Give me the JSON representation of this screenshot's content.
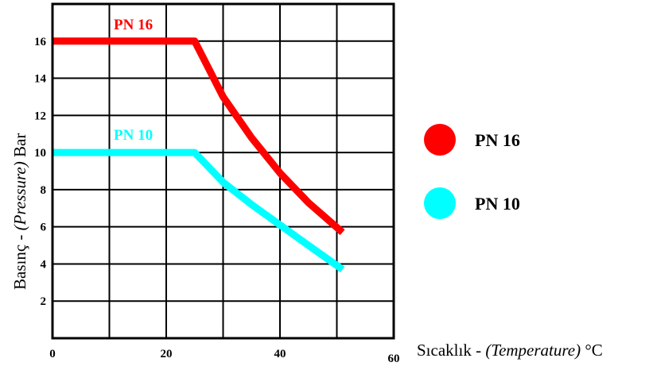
{
  "chart_data": {
    "type": "line",
    "xlabel_plain": "Sıcaklık - ",
    "xlabel_italic": "(Temperature)",
    "xlabel_unit": " °C",
    "ylabel_plain": "Basınç - ",
    "ylabel_italic": "(Pressure)",
    "ylabel_unit": " Bar",
    "xlim": [
      0,
      60
    ],
    "ylim": [
      0,
      18
    ],
    "x_ticks": [
      "0",
      "20",
      "40",
      "60"
    ],
    "y_ticks": [
      "2",
      "4",
      "6",
      "8",
      "10",
      "12",
      "14",
      "16"
    ],
    "grid": true,
    "legend_position": "right",
    "series": [
      {
        "name": "PN 16",
        "color": "#ff0000",
        "x": [
          0,
          25,
          30,
          35,
          40,
          45,
          51
        ],
        "y": [
          16,
          16,
          13,
          10.8,
          8.9,
          7.3,
          5.7
        ]
      },
      {
        "name": "PN 10",
        "color": "#00ffff",
        "x": [
          0,
          25,
          30,
          35,
          40,
          45,
          51
        ],
        "y": [
          10,
          10,
          8.4,
          7.2,
          6.1,
          5.0,
          3.7
        ]
      }
    ]
  }
}
